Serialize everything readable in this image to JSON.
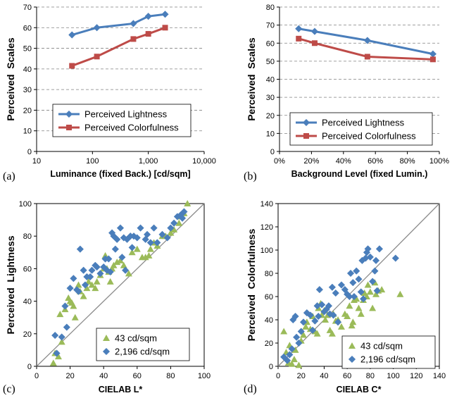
{
  "colors": {
    "blue": "#4a7ebb",
    "red": "#be4b48",
    "green": "#9bbb59",
    "grid": "#808080",
    "diag": "#8c8c8c"
  },
  "chart_data": [
    {
      "id": "a",
      "type": "line",
      "panel_label": "(a)",
      "xscale": "log",
      "xlabel": "Luminance (fixed Back.) [cd/sqm]",
      "ylabel": "Perceived  Scales",
      "xlim": [
        10,
        10000
      ],
      "ylim": [
        0,
        70
      ],
      "xticks": [
        10,
        100,
        1000,
        10000
      ],
      "xtick_labels": [
        "10",
        "100",
        "1,000",
        "10,000"
      ],
      "yticks": [
        0,
        10,
        20,
        30,
        40,
        50,
        60,
        70
      ],
      "grid": "horizontal dashed",
      "legend_position": "lower-center",
      "series": [
        {
          "name": "Perceived Lightness",
          "color": "blue",
          "marker": "diamond",
          "x": [
            43,
            120,
            540,
            1000,
            2000
          ],
          "y": [
            56.5,
            60,
            62,
            65.5,
            66.5
          ]
        },
        {
          "name": "Perceived Colorfulness",
          "color": "red",
          "marker": "square",
          "x": [
            43,
            120,
            540,
            1000,
            2000
          ],
          "y": [
            41.5,
            46,
            54.5,
            57,
            60
          ]
        }
      ]
    },
    {
      "id": "b",
      "type": "line",
      "panel_label": "(b)",
      "xlabel": "Background Level (fixed Lumin.)",
      "ylabel": "Perceived  Scales",
      "xlim": [
        0,
        100
      ],
      "ylim": [
        0,
        80
      ],
      "xticks": [
        0,
        20,
        40,
        60,
        80,
        100
      ],
      "xtick_labels": [
        "0%",
        "20%",
        "40%",
        "60%",
        "80%",
        "100%"
      ],
      "yticks": [
        0,
        10,
        20,
        30,
        40,
        50,
        60,
        70,
        80
      ],
      "grid": "horizontal dashed",
      "legend_position": "lower-center",
      "series": [
        {
          "name": "Perceived Lightness",
          "color": "blue",
          "marker": "diamond",
          "x": [
            12,
            22,
            55,
            96
          ],
          "y": [
            68,
            66.5,
            61.5,
            54
          ]
        },
        {
          "name": "Perceived Colorfulness",
          "color": "red",
          "marker": "square",
          "x": [
            12,
            22,
            55,
            96
          ],
          "y": [
            62.5,
            60,
            52.5,
            51
          ]
        }
      ]
    },
    {
      "id": "c",
      "type": "scatter",
      "panel_label": "(c)",
      "xlabel": "CIELAB L*",
      "ylabel": "Perceived  Lightness",
      "xlim": [
        0,
        100
      ],
      "ylim": [
        0,
        100
      ],
      "xticks": [
        0,
        20,
        40,
        60,
        80,
        100
      ],
      "yticks": [
        0,
        20,
        40,
        60,
        80,
        100
      ],
      "diagonal": true,
      "legend_position": "lower-right",
      "series": [
        {
          "name": "43 cd/sqm",
          "color": "green",
          "marker": "triangle",
          "points": [
            [
              10,
              2
            ],
            [
              11,
              8
            ],
            [
              13,
              6
            ],
            [
              15,
              15
            ],
            [
              14,
              32
            ],
            [
              17,
              35
            ],
            [
              19,
              42
            ],
            [
              20,
              40
            ],
            [
              21,
              39
            ],
            [
              22,
              37
            ],
            [
              23,
              30
            ],
            [
              25,
              50
            ],
            [
              26,
              46
            ],
            [
              28,
              43
            ],
            [
              30,
              48
            ],
            [
              31,
              52
            ],
            [
              33,
              50
            ],
            [
              35,
              48
            ],
            [
              36,
              52
            ],
            [
              38,
              56
            ],
            [
              40,
              60
            ],
            [
              41,
              68
            ],
            [
              42,
              60
            ],
            [
              43,
              58
            ],
            [
              44,
              52
            ],
            [
              45,
              60
            ],
            [
              46,
              62
            ],
            [
              48,
              64
            ],
            [
              50,
              65
            ],
            [
              52,
              62
            ],
            [
              55,
              57
            ],
            [
              57,
              70
            ],
            [
              60,
              72
            ],
            [
              63,
              67
            ],
            [
              65,
              67
            ],
            [
              67,
              68
            ],
            [
              68,
              72
            ],
            [
              70,
              76
            ],
            [
              72,
              74
            ],
            [
              75,
              80
            ],
            [
              77,
              80
            ],
            [
              80,
              82
            ],
            [
              82,
              84
            ],
            [
              85,
              88
            ],
            [
              86,
              92
            ],
            [
              88,
              94
            ],
            [
              90,
              100
            ]
          ]
        },
        {
          "name": "2,196 cd/sqm",
          "color": "blue",
          "marker": "diamond",
          "points": [
            [
              11,
              19
            ],
            [
              12,
              8
            ],
            [
              15,
              18
            ],
            [
              17,
              37
            ],
            [
              18,
              24
            ],
            [
              20,
              48
            ],
            [
              22,
              54
            ],
            [
              24,
              47
            ],
            [
              25,
              46
            ],
            [
              26,
              72
            ],
            [
              28,
              59
            ],
            [
              29,
              50
            ],
            [
              30,
              55
            ],
            [
              32,
              55
            ],
            [
              33,
              59
            ],
            [
              35,
              62
            ],
            [
              36,
              61
            ],
            [
              38,
              57
            ],
            [
              40,
              61
            ],
            [
              41,
              66
            ],
            [
              42,
              59
            ],
            [
              43,
              66
            ],
            [
              44,
              58
            ],
            [
              45,
              82
            ],
            [
              46,
              80
            ],
            [
              47,
              72
            ],
            [
              48,
              78
            ],
            [
              50,
              85
            ],
            [
              51,
              67
            ],
            [
              52,
              79
            ],
            [
              53,
              59
            ],
            [
              54,
              78
            ],
            [
              56,
              80
            ],
            [
              57,
              73
            ],
            [
              58,
              80
            ],
            [
              60,
              79
            ],
            [
              62,
              85
            ],
            [
              65,
              78
            ],
            [
              66,
              81
            ],
            [
              68,
              76
            ],
            [
              70,
              85
            ],
            [
              72,
              76
            ],
            [
              75,
              81
            ],
            [
              78,
              79
            ],
            [
              80,
              85
            ],
            [
              82,
              88
            ],
            [
              84,
              92
            ],
            [
              86,
              93
            ],
            [
              87,
              91
            ],
            [
              88,
              95
            ]
          ]
        }
      ]
    },
    {
      "id": "d",
      "type": "scatter",
      "panel_label": "(d)",
      "xlabel": "CIELAB C*",
      "ylabel": "Perceived  Colorfulness",
      "xlim": [
        0,
        140
      ],
      "ylim": [
        0,
        140
      ],
      "xticks": [
        0,
        20,
        40,
        60,
        80,
        100,
        120,
        140
      ],
      "yticks": [
        0,
        20,
        40,
        60,
        80,
        100,
        120,
        140
      ],
      "diagonal": true,
      "legend_position": "lower-right",
      "series": [
        {
          "name": "43 cd/sqm",
          "color": "green",
          "marker": "triangle",
          "points": [
            [
              5,
              30
            ],
            [
              7,
              12
            ],
            [
              9,
              3
            ],
            [
              10,
              18
            ],
            [
              12,
              2
            ],
            [
              14,
              6
            ],
            [
              15,
              14
            ],
            [
              18,
              1
            ],
            [
              20,
              22
            ],
            [
              22,
              27
            ],
            [
              24,
              34
            ],
            [
              25,
              38
            ],
            [
              28,
              32
            ],
            [
              30,
              43
            ],
            [
              32,
              30
            ],
            [
              34,
              28
            ],
            [
              35,
              50
            ],
            [
              37,
              54
            ],
            [
              38,
              44
            ],
            [
              40,
              48
            ],
            [
              41,
              40
            ],
            [
              43,
              44
            ],
            [
              45,
              31
            ],
            [
              47,
              28
            ],
            [
              48,
              45
            ],
            [
              50,
              39
            ],
            [
              52,
              40
            ],
            [
              55,
              34
            ],
            [
              58,
              45
            ],
            [
              60,
              43
            ],
            [
              62,
              52
            ],
            [
              64,
              35
            ],
            [
              65,
              38
            ],
            [
              66,
              57
            ],
            [
              68,
              58
            ],
            [
              70,
              50
            ],
            [
              72,
              45
            ],
            [
              74,
              57
            ],
            [
              75,
              63
            ],
            [
              77,
              60
            ],
            [
              78,
              70
            ],
            [
              80,
              64
            ],
            [
              82,
              50
            ],
            [
              84,
              72
            ],
            [
              85,
              62
            ],
            [
              87,
              65
            ],
            [
              90,
              66
            ],
            [
              106,
              62
            ]
          ]
        },
        {
          "name": "2,196 cd/sqm",
          "color": "blue",
          "marker": "diamond",
          "points": [
            [
              5,
              8
            ],
            [
              8,
              5
            ],
            [
              10,
              10
            ],
            [
              12,
              15
            ],
            [
              13,
              40
            ],
            [
              15,
              43
            ],
            [
              16,
              25
            ],
            [
              18,
              20
            ],
            [
              20,
              30
            ],
            [
              22,
              38
            ],
            [
              25,
              46
            ],
            [
              28,
              44
            ],
            [
              30,
              31
            ],
            [
              32,
              39
            ],
            [
              34,
              52
            ],
            [
              35,
              43
            ],
            [
              36,
              66
            ],
            [
              38,
              53
            ],
            [
              40,
              47
            ],
            [
              42,
              49
            ],
            [
              44,
              52
            ],
            [
              45,
              45
            ],
            [
              47,
              68
            ],
            [
              48,
              44
            ],
            [
              50,
              63
            ],
            [
              52,
              38
            ],
            [
              55,
              70
            ],
            [
              58,
              66
            ],
            [
              60,
              62
            ],
            [
              62,
              60
            ],
            [
              63,
              80
            ],
            [
              65,
              72
            ],
            [
              66,
              60
            ],
            [
              68,
              82
            ],
            [
              70,
              75
            ],
            [
              72,
              64
            ],
            [
              73,
              91
            ],
            [
              74,
              58
            ],
            [
              76,
              93
            ],
            [
              77,
              98
            ],
            [
              78,
              101
            ],
            [
              80,
              94
            ],
            [
              82,
              73
            ],
            [
              84,
              82
            ],
            [
              85,
              91
            ],
            [
              86,
              65
            ],
            [
              88,
              101
            ],
            [
              102,
              93
            ]
          ]
        }
      ]
    }
  ]
}
